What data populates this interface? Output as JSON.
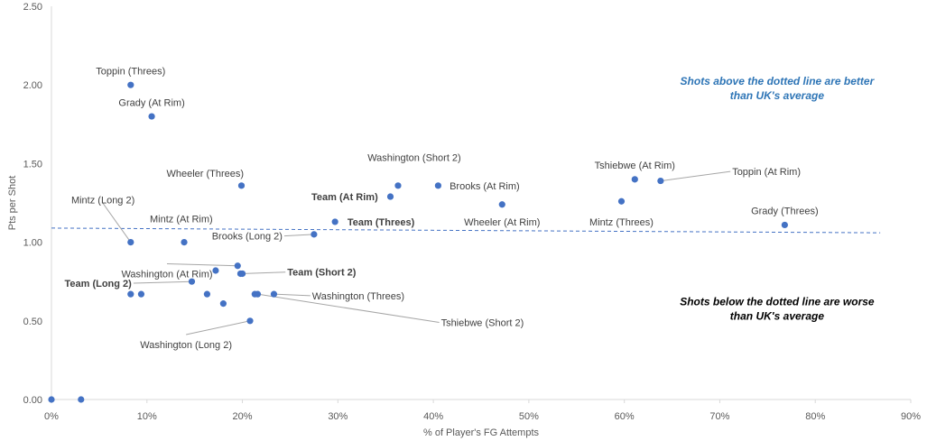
{
  "chart_data": {
    "type": "scatter",
    "xlabel": "% of Player's FG Attempts",
    "ylabel": "Pts per Shot",
    "xlim": [
      0,
      0.9
    ],
    "ylim": [
      0,
      2.5
    ],
    "x_ticks": [
      "0%",
      "10%",
      "20%",
      "30%",
      "40%",
      "50%",
      "60%",
      "70%",
      "80%",
      "90%"
    ],
    "y_ticks": [
      "0.00",
      "0.50",
      "1.00",
      "1.50",
      "2.00",
      "2.50"
    ],
    "grid": false,
    "marker_color": "#4472c4",
    "reference_line": {
      "style": "dashed",
      "color": "#4472c4",
      "from": [
        0,
        1.09
      ],
      "to": [
        0.868,
        1.06
      ]
    },
    "annotations": [
      {
        "text_lines": [
          "Shots above the dotted line are better",
          "than UK's average"
        ],
        "color": "#2e75b6",
        "x": 0.76,
        "y": 2.0
      },
      {
        "text_lines": [
          "Shots below the dotted line are worse",
          "than UK's average"
        ],
        "color": "#000000",
        "x": 0.76,
        "y": 0.6
      }
    ],
    "points": [
      {
        "label": "Toppin (Threes)",
        "x": 0.083,
        "y": 2.0,
        "label_pos": [
          0.083,
          2.09
        ],
        "anchor": "middle",
        "bold": false,
        "leader": false
      },
      {
        "label": "Grady (At Rim)",
        "x": 0.105,
        "y": 1.8,
        "label_pos": [
          0.105,
          1.89
        ],
        "anchor": "middle",
        "bold": false,
        "leader": false
      },
      {
        "label": "Wheeler (Threes)",
        "x": 0.199,
        "y": 1.36,
        "label_pos": [
          0.161,
          1.44
        ],
        "anchor": "middle",
        "bold": false,
        "leader": false
      },
      {
        "label": "Washington (Short 2)",
        "x": 0.363,
        "y": 1.36,
        "label_pos": [
          0.38,
          1.54
        ],
        "anchor": "middle",
        "bold": false,
        "leader": false
      },
      {
        "label": "Brooks (At Rim)",
        "x": 0.405,
        "y": 1.36,
        "label_pos": [
          0.417,
          1.36
        ],
        "anchor": "start",
        "bold": false,
        "leader": false
      },
      {
        "label": "Team (At Rim)",
        "x": 0.355,
        "y": 1.29,
        "label_pos": [
          0.342,
          1.29
        ],
        "anchor": "end",
        "bold": true,
        "leader": false
      },
      {
        "label": "Wheeler (At Rim)",
        "x": 0.472,
        "y": 1.24,
        "label_pos": [
          0.472,
          1.13
        ],
        "anchor": "middle",
        "bold": false,
        "leader": false
      },
      {
        "label": "Tshiebwe (At Rim)",
        "x": 0.611,
        "y": 1.4,
        "label_pos": [
          0.611,
          1.49
        ],
        "anchor": "middle",
        "bold": false,
        "leader": false
      },
      {
        "label": "Toppin (At Rim)",
        "x": 0.638,
        "y": 1.39,
        "label_pos": [
          0.713,
          1.45
        ],
        "anchor": "start",
        "bold": false,
        "leader": true
      },
      {
        "label": "Mintz (Threes)",
        "x": 0.597,
        "y": 1.26,
        "label_pos": [
          0.597,
          1.13
        ],
        "anchor": "middle",
        "bold": false,
        "leader": false
      },
      {
        "label": "Grady (Threes)",
        "x": 0.768,
        "y": 1.11,
        "label_pos": [
          0.768,
          1.2
        ],
        "anchor": "middle",
        "bold": false,
        "leader": false
      },
      {
        "label": "Team (Threes)",
        "x": 0.297,
        "y": 1.13,
        "label_pos": [
          0.31,
          1.13
        ],
        "anchor": "start",
        "bold": true,
        "leader": false
      },
      {
        "label": "Brooks (Long 2)",
        "x": 0.275,
        "y": 1.05,
        "label_pos": [
          0.242,
          1.04
        ],
        "anchor": "end",
        "bold": false,
        "leader": true
      },
      {
        "label": "Mintz (Long 2)",
        "x": 0.083,
        "y": 1.0,
        "label_pos": [
          0.054,
          1.27
        ],
        "anchor": "middle",
        "bold": false,
        "leader": true
      },
      {
        "label": "Mintz (At Rim)",
        "x": 0.139,
        "y": 1.0,
        "label_pos": [
          0.136,
          1.15
        ],
        "anchor": "middle",
        "bold": false,
        "leader": false
      },
      {
        "label": "Washington (At Rim)",
        "x": 0.195,
        "y": 0.85,
        "label_pos": [
          0.121,
          0.8
        ],
        "anchor": "middle",
        "bold": false,
        "leader": true
      },
      {
        "label": "Team (Short 2)",
        "x": 0.198,
        "y": 0.8,
        "label_pos": [
          0.247,
          0.81
        ],
        "anchor": "start",
        "bold": true,
        "leader": true
      },
      {
        "label": "Team (Long 2)",
        "x": 0.147,
        "y": 0.75,
        "label_pos": [
          0.084,
          0.74
        ],
        "anchor": "end",
        "bold": true,
        "leader": true
      },
      {
        "label": "Washington (Threes)",
        "x": 0.233,
        "y": 0.67,
        "label_pos": [
          0.273,
          0.66
        ],
        "anchor": "start",
        "bold": false,
        "leader": true
      },
      {
        "label": "Tshiebwe (Short 2)",
        "x": 0.216,
        "y": 0.67,
        "label_pos": [
          0.408,
          0.49
        ],
        "anchor": "start",
        "bold": false,
        "leader": true
      },
      {
        "label": "Washington (Long 2)",
        "x": 0.208,
        "y": 0.5,
        "label_pos": [
          0.141,
          0.35
        ],
        "anchor": "middle",
        "bold": false,
        "leader": true
      },
      {
        "label": "",
        "x": 0.0,
        "y": 0.0
      },
      {
        "label": "",
        "x": 0.031,
        "y": 0.0
      },
      {
        "label": "",
        "x": 0.083,
        "y": 0.67
      },
      {
        "label": "",
        "x": 0.094,
        "y": 0.67
      },
      {
        "label": "",
        "x": 0.163,
        "y": 0.67
      },
      {
        "label": "",
        "x": 0.18,
        "y": 0.61
      },
      {
        "label": "",
        "x": 0.172,
        "y": 0.82
      },
      {
        "label": "",
        "x": 0.2,
        "y": 0.8
      },
      {
        "label": "",
        "x": 0.213,
        "y": 0.67
      }
    ]
  }
}
